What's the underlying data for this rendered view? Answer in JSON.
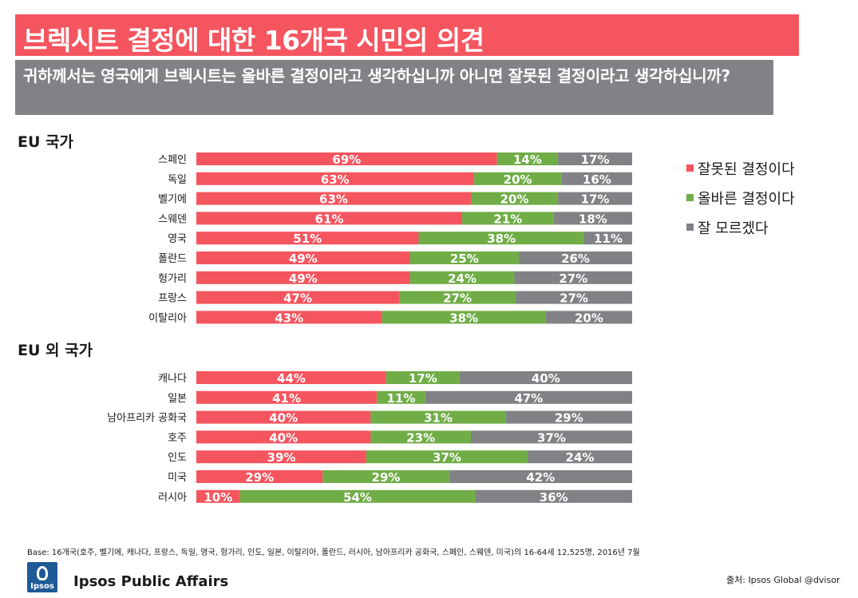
{
  "header": {
    "title": "브렉시트 결정에 대한 16개국 시민의 의견",
    "question": "귀하께서는 영국에게 브렉시트는 올바른 결정이라고 생각하십니까 아니면 잘못된 결정이라고 생각하십니까?"
  },
  "colors": {
    "wrong": "#f4555f",
    "right": "#70ad47",
    "unknown": "#808285"
  },
  "chart_data": {
    "type": "bar",
    "orientation": "horizontal",
    "stacked": true,
    "legend_position": "right",
    "series": [
      {
        "name": "잘못된 결정이다"
      },
      {
        "name": "올바른 결정이다"
      },
      {
        "name": "잘 모르겠다"
      }
    ],
    "groups": [
      {
        "heading": "EU 국가",
        "rows": [
          {
            "category": "스페인",
            "values": [
              69,
              14,
              17
            ]
          },
          {
            "category": "독일",
            "values": [
              63,
              20,
              16
            ]
          },
          {
            "category": "벨기에",
            "values": [
              63,
              20,
              17
            ]
          },
          {
            "category": "스웨덴",
            "values": [
              61,
              21,
              18
            ]
          },
          {
            "category": "영국",
            "values": [
              51,
              38,
              11
            ]
          },
          {
            "category": "폴란드",
            "values": [
              49,
              25,
              26
            ]
          },
          {
            "category": "헝가리",
            "values": [
              49,
              24,
              27
            ]
          },
          {
            "category": "프랑스",
            "values": [
              47,
              27,
              27
            ]
          },
          {
            "category": "이탈리아",
            "values": [
              43,
              38,
              20
            ]
          }
        ]
      },
      {
        "heading": "EU 외 국가",
        "rows": [
          {
            "category": "캐나다",
            "values": [
              44,
              17,
              40
            ]
          },
          {
            "category": "일본",
            "values": [
              41,
              11,
              47
            ]
          },
          {
            "category": "남아프리카 공화국",
            "values": [
              40,
              31,
              29
            ]
          },
          {
            "category": "호주",
            "values": [
              40,
              23,
              37
            ]
          },
          {
            "category": "인도",
            "values": [
              39,
              37,
              24
            ]
          },
          {
            "category": "미국",
            "values": [
              29,
              29,
              42
            ]
          },
          {
            "category": "러시아",
            "values": [
              10,
              54,
              36
            ]
          }
        ]
      }
    ]
  },
  "footer": {
    "base": "Base: 16개국(호주, 벨기에, 캐나다, 프랑스, 독일, 영국, 헝가리, 인도, 일본, 이탈리아, 폴란드, 러시아, 남아프리카 공화국, 스페인, 스웨덴, 미국)의 16-64세 12,525명, 2016년 7월",
    "logo_text": "Ipsos",
    "brand": "Ipsos Public Affairs",
    "source": "출처: Ipsos Global @dvisor"
  }
}
